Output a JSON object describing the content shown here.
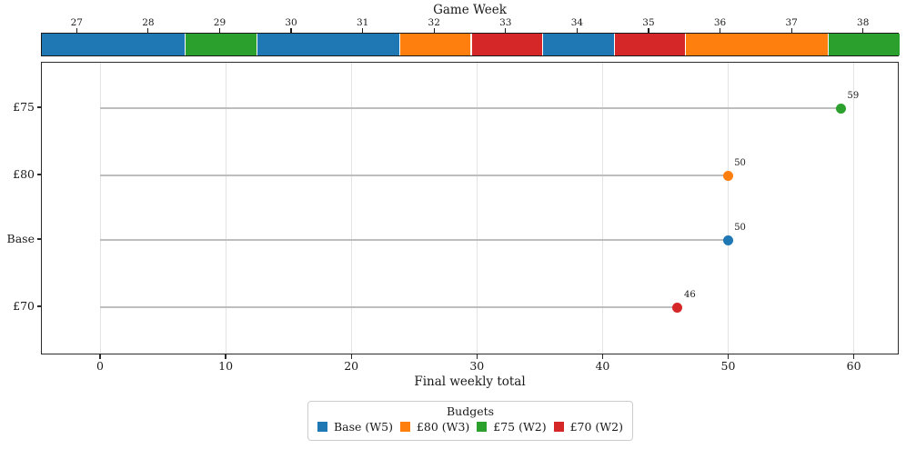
{
  "colors": {
    "blue": "#1f77b4",
    "orange": "#ff7f0e",
    "green": "#2ca02c",
    "red": "#d62728",
    "stem": "#bdbdbd",
    "grid": "#e3e3e3",
    "spine": "#2b2b2b",
    "text": "#1a1a1a",
    "legend_border": "#cccccc"
  },
  "budget_colors": {
    "Base": "#1f77b4",
    "£80": "#ff7f0e",
    "£75": "#2ca02c",
    "£70": "#d62728"
  },
  "top_axis": {
    "title": "Game Week"
  },
  "x_axis": {
    "label": "Final weekly total",
    "ticks": [
      0,
      10,
      20,
      30,
      40,
      50,
      60
    ]
  },
  "legend": {
    "title": "Budgets",
    "entries": [
      {
        "label": "Base (W5)",
        "color": "#1f77b4"
      },
      {
        "label": "£80 (W3)",
        "color": "#ff7f0e"
      },
      {
        "label": "£75 (W2)",
        "color": "#2ca02c"
      },
      {
        "label": "£70 (W2)",
        "color": "#d62728"
      }
    ]
  },
  "chart_data": [
    {
      "type": "bar",
      "subtype": "horizontal_lollipop",
      "title": "",
      "categories": [
        "£75",
        "£80",
        "Base",
        "£70"
      ],
      "values": [
        59,
        50,
        50,
        46
      ],
      "point_colors": [
        "#2ca02c",
        "#ff7f0e",
        "#1f77b4",
        "#d62728"
      ],
      "value_labels": [
        "59",
        "50",
        "50",
        "46"
      ],
      "xlabel": "Final weekly total",
      "ylabel": "",
      "xlim": [
        -4.7,
        63.6
      ],
      "xticks": [
        0,
        10,
        20,
        30,
        40,
        50,
        60
      ],
      "grid": "vertical-only",
      "legend_title": "Budgets",
      "legend_position": "bottom-center"
    },
    {
      "type": "heatmap",
      "subtype": "categorical_week_strip",
      "title": "Game Week",
      "x": [
        27,
        28,
        29,
        30,
        31,
        32,
        33,
        34,
        35,
        36,
        37,
        38
      ],
      "values": [
        "Base",
        "Base",
        "£75",
        "Base",
        "Base",
        "£80",
        "£70",
        "Base",
        "£70",
        "£80",
        "£80",
        "£75"
      ]
    }
  ]
}
